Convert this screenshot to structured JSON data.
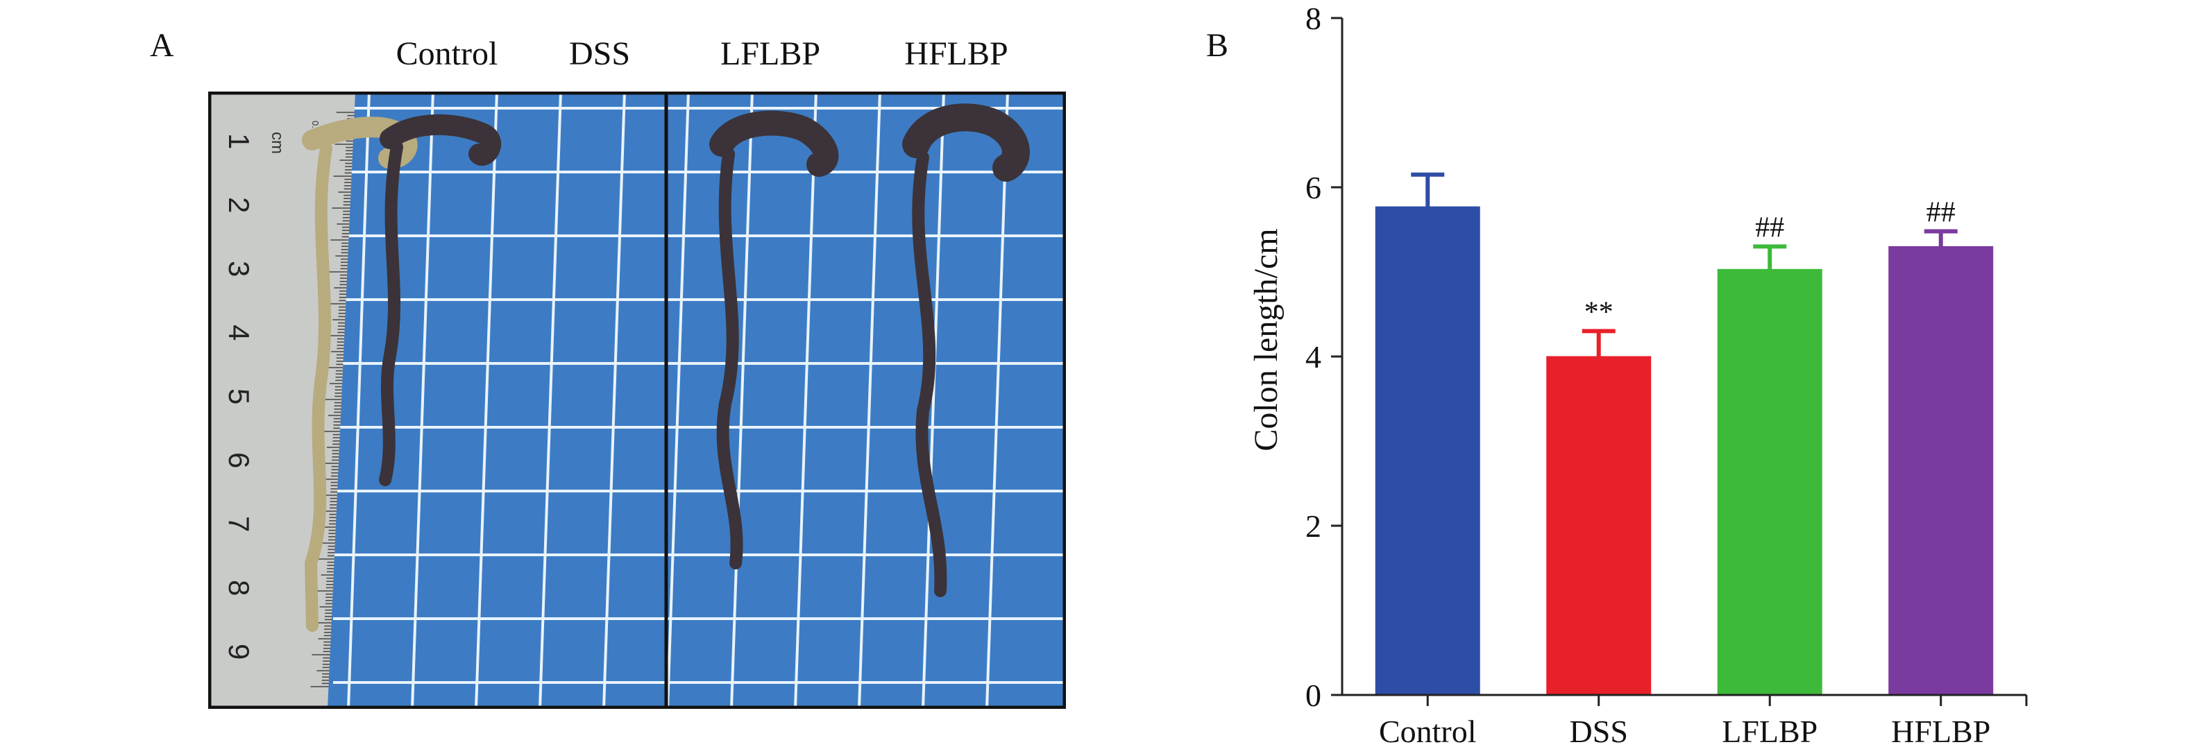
{
  "panel_a": {
    "letter": "A",
    "group_labels": [
      "Control",
      "DSS",
      "LFLBP",
      "HFLBP"
    ],
    "ruler": {
      "unit_label": "cm",
      "small_label": "0.5mm",
      "numbers": [
        "1",
        "2",
        "3",
        "4",
        "5",
        "6",
        "7",
        "8",
        "9"
      ]
    },
    "colors": {
      "board_blue": "#3d7cc4",
      "grid_line": "#e8f3fb",
      "ruler": "#c9cbc9",
      "control_colon": "#b8ab7e",
      "treated_colon": "#3b3339"
    }
  },
  "panel_b": {
    "letter": "B",
    "chart_data": {
      "type": "bar",
      "categories": [
        "Control",
        "DSS",
        "LFLBP",
        "HFLBP"
      ],
      "values": [
        5.77,
        4.0,
        5.03,
        5.3
      ],
      "errors": [
        0.38,
        0.3,
        0.27,
        0.18
      ],
      "annotations": [
        "",
        "**",
        "##",
        "##"
      ],
      "colors": [
        "#2e4ea6",
        "#e8202a",
        "#3dba3a",
        "#7a3a9f"
      ],
      "ylabel": "Colon length/cm",
      "xlabel": "",
      "ylim": [
        0,
        8
      ],
      "yticks": [
        "0",
        "2",
        "4",
        "6",
        "8"
      ],
      "grid": false,
      "legend": "none"
    }
  }
}
